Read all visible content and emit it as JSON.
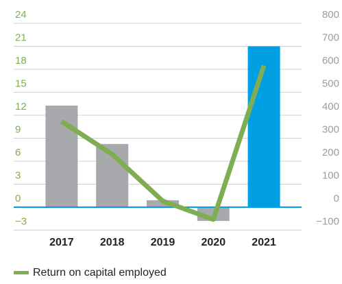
{
  "chart_data": {
    "type": "bar",
    "categories": [
      "2017",
      "2018",
      "2019",
      "2020",
      "2021"
    ],
    "series": [
      {
        "values": [
          442,
          275,
          30,
          -60,
          700
        ],
        "colors": [
          "#a7a9ac",
          "#a7a9ac",
          "#a7a9ac",
          "#a7a9ac",
          "#009fe3"
        ],
        "axis": "y2"
      },
      {
        "name": "Return on capital employed",
        "type": "line",
        "color": "#7fad52",
        "values": [
          11.2,
          6.9,
          0.8,
          -1.6,
          18.5
        ]
      }
    ],
    "ylim": [
      -3,
      24
    ],
    "yticks": [
      {
        "value": -3,
        "label": "−3"
      },
      0,
      3,
      6,
      9,
      12,
      15,
      18,
      21,
      24
    ],
    "y2lim": [
      -100,
      800
    ],
    "y2ticks": [
      {
        "value": -100,
        "label": "−100"
      },
      0,
      100,
      200,
      300,
      400,
      500,
      600,
      700,
      800
    ],
    "grid": true,
    "legend": "bottom-left",
    "zero_line_color": "#009fe3"
  }
}
